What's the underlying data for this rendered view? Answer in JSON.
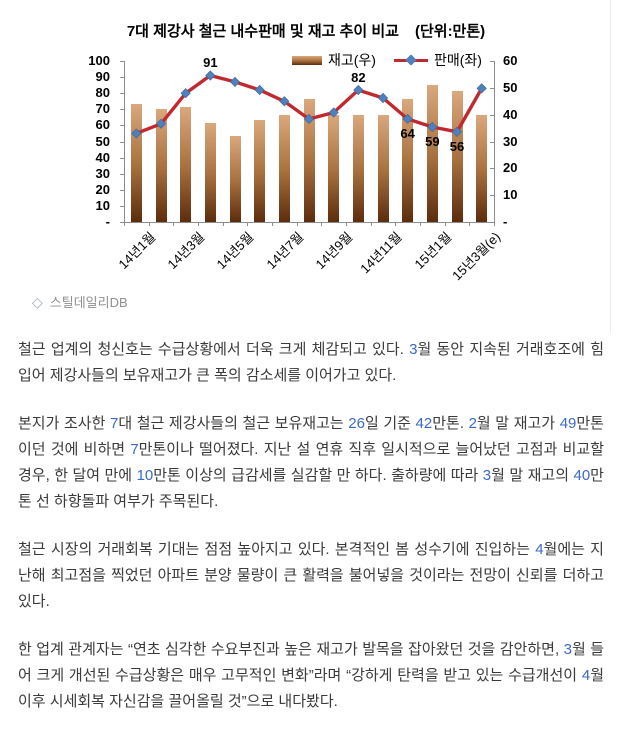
{
  "chart": {
    "title": "7대 제강사 철근 내수판매 및 재고 추이 비교",
    "unit_label": "(단위:만톤)",
    "source": {
      "icon": "◇",
      "label": "스틸데일리DB"
    }
  },
  "chart_data": {
    "type": "combo-bar-line",
    "title": "7대 제강사 철근 내수판매 및 재고 추이 비교",
    "unit": "만톤",
    "categories": [
      "14년1월",
      "14년2월",
      "14년3월",
      "14년4월",
      "14년5월",
      "14년6월",
      "14년7월",
      "14년8월",
      "14년9월",
      "14년10월",
      "14년11월",
      "14년12월",
      "15년1월",
      "15년2월",
      "15년3월(e)"
    ],
    "x_ticks": [
      {
        "label": "14년1월",
        "index": 0
      },
      {
        "label": "14년3월",
        "index": 2
      },
      {
        "label": "14년5월",
        "index": 4
      },
      {
        "label": "14년7월",
        "index": 6
      },
      {
        "label": "14년9월",
        "index": 8
      },
      {
        "label": "14년11월",
        "index": 10
      },
      {
        "label": "15년1월",
        "index": 12
      },
      {
        "label": "15년3월(e)",
        "index": 14
      }
    ],
    "series": [
      {
        "name": "재고(우)",
        "type": "bar",
        "axis": "right",
        "values": [
          44,
          42,
          43,
          37,
          32,
          38,
          40,
          46,
          40,
          40,
          40,
          46,
          51,
          49,
          40
        ]
      },
      {
        "name": "판매(좌)",
        "type": "line",
        "axis": "left",
        "values": [
          55,
          61,
          80,
          91,
          87,
          82,
          75,
          64,
          68,
          82,
          77,
          64,
          59,
          56,
          83
        ],
        "point_labels": [
          "",
          "",
          "",
          "91",
          "",
          "",
          "",
          "",
          "",
          "82",
          "",
          "64",
          "59",
          "56",
          ""
        ]
      }
    ],
    "left_axis": {
      "min": 0,
      "max": 100,
      "step": 10,
      "zero_label": "-"
    },
    "right_axis": {
      "min": 0,
      "max": 60,
      "step": 10,
      "zero_label": "-"
    },
    "legend_position": "top-inside",
    "grid": false,
    "colors": {
      "bar_top": "#DAA87D",
      "bar_bottom": "#5C2C0D",
      "line": "#C1292E",
      "marker": "#4F81BD"
    }
  },
  "article": {
    "number_color": "#3A6AC8",
    "paragraphs": [
      "철근 업계의 청신호는 수급상황에서 더욱 크게 체감되고 있다. 3월 동안 지속된 거래호조에 힘입어 제강사들의 보유재고가 큰 폭의 감소세를 이어가고 있다.",
      "본지가 조사한 7대 철근 제강사들의 철근 보유재고는 26일 기준 42만톤. 2월 말 재고가 49만톤이던 것에 비하면 7만톤이나 떨어졌다. 지난 설 연휴 직후 일시적으로 늘어났던 고점과 비교할 경우, 한 달여 만에 10만톤 이상의 급감세를 실감할 만 하다. 출하량에 따라 3월 말 재고의 40만톤 선 하향돌파 여부가 주목된다.",
      "철근 시장의 거래회복 기대는 점점 높아지고 있다. 본격적인 봄 성수기에 진입하는 4월에는 지난해 최고점을 찍었던 아파트 분양 물량이 큰 활력을 불어넣을 것이라는 전망이 신뢰를 더하고 있다.",
      "한 업계 관계자는 “연초 심각한 수요부진과 높은 재고가 발목을 잡아왔던 것을 감안하면, 3월 들어 크게 개선된 수급상황은 매우 고무적인 변화”라며 “강하게 탄력을 받고 있는 수급개선이 4월 이후 시세회복 자신감을 끌어올릴 것”으로 내다봤다."
    ]
  }
}
